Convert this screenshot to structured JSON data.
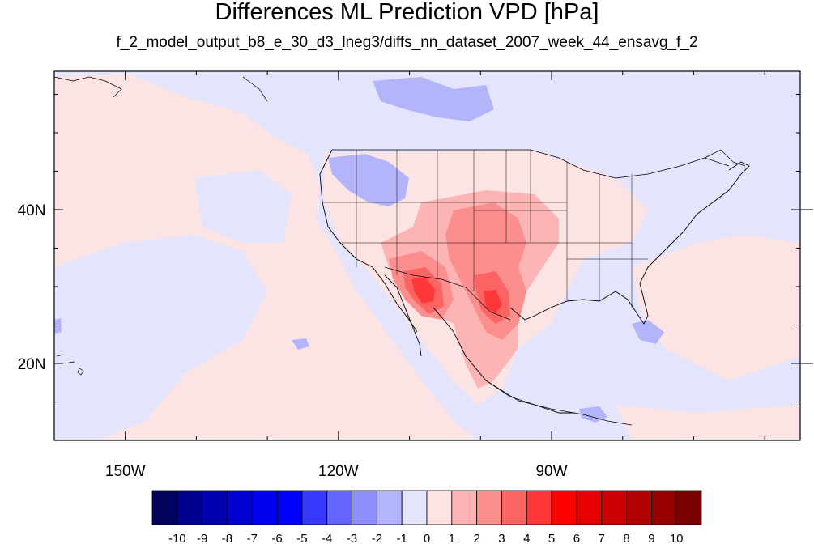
{
  "figure": {
    "title": "Differences ML Prediction VPD [hPa]",
    "subtitle": "f_2_model_output_b8_e_30_d3_lneg3/diffs_nn_dataset_2007_week_44_ensavg_f_2"
  },
  "map": {
    "projection": "cylindrical-equidistant",
    "lon_range": [
      -160,
      -55
    ],
    "lat_range": [
      10,
      58
    ],
    "x_ticks": [
      {
        "lon": -150,
        "label": "150W"
      },
      {
        "lon": -120,
        "label": "120W"
      },
      {
        "lon": -90,
        "label": "90W"
      }
    ],
    "y_ticks": [
      {
        "lat": 20,
        "label": "20N"
      },
      {
        "lat": 40,
        "label": "40N"
      }
    ],
    "background_value": "0 to -1 / 0 to 1 (pale)",
    "regions_of_interest": [
      {
        "name": "Arizona/Sonora hotspot",
        "sign": "positive",
        "peak": 6
      },
      {
        "name": "Texas/Oklahoma",
        "sign": "positive",
        "peak": 5
      },
      {
        "name": "Montana/Idaho",
        "sign": "negative",
        "peak": -2
      },
      {
        "name": "Canada south",
        "sign": "negative",
        "peak": -2
      }
    ]
  },
  "colorbar": {
    "labels": [
      "-10",
      "-9",
      "-8",
      "-7",
      "-6",
      "-5",
      "-4",
      "-3",
      "-2",
      "-1",
      "0",
      "1",
      "2",
      "3",
      "4",
      "5",
      "6",
      "7",
      "8",
      "9",
      "10"
    ],
    "colors": [
      "#02025f",
      "#000090",
      "#0000b0",
      "#0000d0",
      "#0000ee",
      "#0000ff",
      "#3838ff",
      "#6464ff",
      "#8e8efd",
      "#b4b4fb",
      "#e4e4fc",
      "#fde4e4",
      "#fcb4b4",
      "#fc8e8e",
      "#fc6464",
      "#fe3838",
      "#ff0000",
      "#e60000",
      "#cc0000",
      "#b00000",
      "#960000",
      "#7a0000"
    ]
  },
  "colors": {
    "ocean_neg": "#e4e4fc",
    "ocean_pos": "#fde4e4"
  }
}
